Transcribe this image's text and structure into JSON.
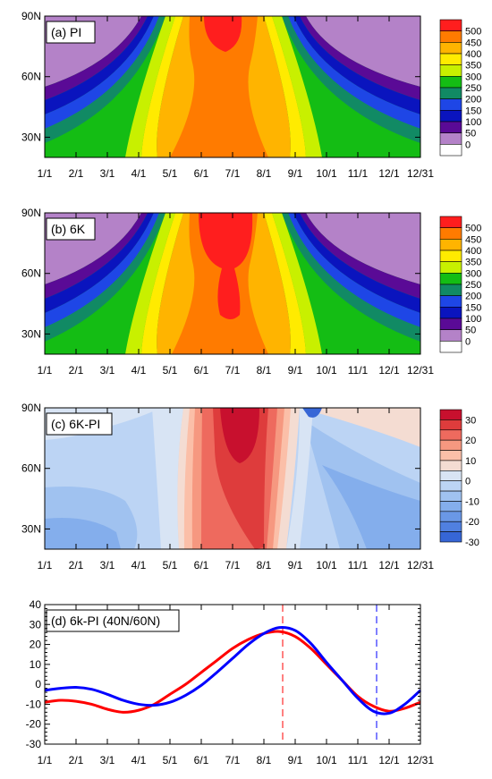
{
  "figure": {
    "months": [
      "1/1",
      "2/1",
      "3/1",
      "4/1",
      "5/1",
      "6/1",
      "7/1",
      "8/1",
      "9/1",
      "10/1",
      "11/1",
      "12/1",
      "12/31"
    ],
    "lat_ticks": [
      "90N",
      "60N",
      "30N"
    ]
  },
  "chart_data": [
    {
      "type": "heatmap",
      "panel": "a",
      "title": "(a) PI",
      "x_ticks": [
        "1/1",
        "2/1",
        "3/1",
        "4/1",
        "5/1",
        "6/1",
        "7/1",
        "8/1",
        "9/1",
        "10/1",
        "11/1",
        "12/1",
        "12/31"
      ],
      "y_ticks": [
        "90N",
        "60N",
        "30N"
      ],
      "ylim": [
        20,
        90
      ],
      "colorbar_levels": [
        "500",
        "450",
        "400",
        "350",
        "300",
        "250",
        "200",
        "150",
        "100",
        "50",
        "0"
      ],
      "colorbar_colors": [
        "#ff1e1e",
        "#ff7b00",
        "#ffb400",
        "#ffeb00",
        "#c8f000",
        "#14bd14",
        "#118a64",
        "#1e46e6",
        "#0a14be",
        "#5a0a96",
        "#b482c8",
        "#ffffff"
      ]
    },
    {
      "type": "heatmap",
      "panel": "b",
      "title": "(b) 6K",
      "x_ticks": [
        "1/1",
        "2/1",
        "3/1",
        "4/1",
        "5/1",
        "6/1",
        "7/1",
        "8/1",
        "9/1",
        "10/1",
        "11/1",
        "12/1",
        "12/31"
      ],
      "y_ticks": [
        "90N",
        "60N",
        "30N"
      ],
      "ylim": [
        20,
        90
      ],
      "colorbar_levels": [
        "500",
        "450",
        "400",
        "350",
        "300",
        "250",
        "200",
        "150",
        "100",
        "50",
        "0"
      ],
      "colorbar_colors": [
        "#ff1e1e",
        "#ff7b00",
        "#ffb400",
        "#ffeb00",
        "#c8f000",
        "#14bd14",
        "#118a64",
        "#1e46e6",
        "#0a14be",
        "#5a0a96",
        "#b482c8",
        "#ffffff"
      ]
    },
    {
      "type": "heatmap",
      "panel": "c",
      "title": "(c) 6K-PI",
      "x_ticks": [
        "1/1",
        "2/1",
        "3/1",
        "4/1",
        "5/1",
        "6/1",
        "7/1",
        "8/1",
        "9/1",
        "10/1",
        "11/1",
        "12/1",
        "12/31"
      ],
      "y_ticks": [
        "90N",
        "60N",
        "30N"
      ],
      "ylim": [
        20,
        90
      ],
      "colorbar_levels": [
        "30",
        "20",
        "10",
        "0",
        "-10",
        "-20",
        "-30"
      ],
      "colorbar_colors": [
        "#c8102e",
        "#de3c3c",
        "#ee6a5e",
        "#f69880",
        "#fbbfa8",
        "#f4dcd2",
        "#d8e4f4",
        "#bcd4f4",
        "#a0c2f0",
        "#84aeec",
        "#6a98e6",
        "#5080e0",
        "#3666d6"
      ]
    },
    {
      "type": "line",
      "panel": "d",
      "title": "(d) 6k-PI (40N/60N)",
      "x_ticks": [
        "1/1",
        "2/1",
        "3/1",
        "4/1",
        "5/1",
        "6/1",
        "7/1",
        "8/1",
        "9/1",
        "10/1",
        "11/1",
        "12/1",
        "12/31"
      ],
      "y_ticks": [
        "40",
        "30",
        "20",
        "10",
        "0",
        "-10",
        "-20",
        "-30"
      ],
      "ylim": [
        -30,
        40
      ],
      "x_unit": "month (0 = 1/1, 12 = 12/31)",
      "series": [
        {
          "color": "#ff0000",
          "x": [
            0,
            0.5,
            1,
            1.5,
            2,
            2.5,
            3,
            3.5,
            4,
            4.5,
            5,
            5.5,
            6,
            6.5,
            7,
            7.5,
            8,
            8.5,
            9,
            9.5,
            10,
            10.5,
            11,
            11.5,
            12
          ],
          "values": [
            -9,
            -8,
            -8.5,
            -10,
            -12.5,
            -14,
            -13,
            -10,
            -5,
            0,
            6,
            12,
            18,
            22.5,
            25.5,
            26.5,
            24,
            18,
            10,
            2,
            -6,
            -11,
            -13.5,
            -12,
            -9
          ],
          "vline_x": 7.6
        },
        {
          "color": "#0000ff",
          "x": [
            0,
            0.5,
            1,
            1.5,
            2,
            2.5,
            3,
            3.5,
            4,
            4.5,
            5,
            5.5,
            6,
            6.5,
            7,
            7.5,
            8,
            8.5,
            9,
            9.5,
            10,
            10.5,
            11,
            11.5,
            12
          ],
          "values": [
            -3,
            -2,
            -1.5,
            -2.5,
            -5,
            -8,
            -10,
            -10.5,
            -9,
            -5.5,
            -0.5,
            6,
            13,
            20,
            25.5,
            28.5,
            27,
            20.5,
            11,
            2,
            -7,
            -13.5,
            -14.5,
            -10,
            -3
          ],
          "vline_x": 10.6
        }
      ]
    }
  ]
}
